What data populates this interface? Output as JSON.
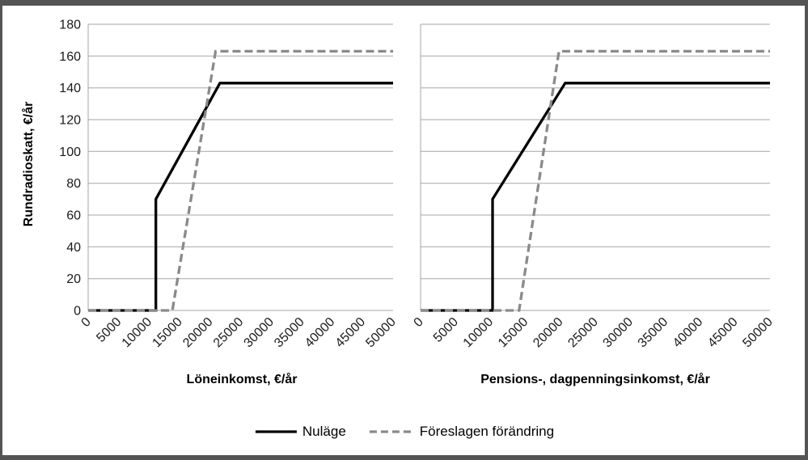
{
  "chart_data": [
    {
      "type": "line",
      "title": "",
      "xlabel": "Löneinkomst, €/år",
      "ylabel": "Rundradioskatt, €/år",
      "xlim": [
        0,
        50000
      ],
      "ylim": [
        0,
        180
      ],
      "x_ticks": [
        0,
        5000,
        10000,
        15000,
        20000,
        25000,
        30000,
        35000,
        40000,
        45000,
        50000
      ],
      "y_ticks": [
        0,
        20,
        40,
        60,
        80,
        100,
        120,
        140,
        160,
        180
      ],
      "grid": "horizontal-only",
      "legend_position": "bottom-center",
      "series": [
        {
          "name": "Nuläge",
          "style": "solid",
          "color": "#000000",
          "points": [
            [
              0,
              0
            ],
            [
              11100,
              0
            ],
            [
              11100,
              70
            ],
            [
              21600,
              143
            ],
            [
              50000,
              143
            ]
          ]
        },
        {
          "name": "Föreslagen förändring",
          "style": "dashed",
          "color": "#8a8a8a",
          "points": [
            [
              0,
              0
            ],
            [
              13800,
              0
            ],
            [
              20900,
              163
            ],
            [
              50000,
              163
            ]
          ]
        }
      ]
    },
    {
      "type": "line",
      "title": "",
      "xlabel": "Pensions-, dagpenningsinkomst, €/år",
      "ylabel": "Rundradioskatt, €/år",
      "xlim": [
        0,
        50000
      ],
      "ylim": [
        0,
        180
      ],
      "x_ticks": [
        0,
        5000,
        10000,
        15000,
        20000,
        25000,
        30000,
        35000,
        40000,
        45000,
        50000
      ],
      "y_ticks": [
        0,
        20,
        40,
        60,
        80,
        100,
        120,
        140,
        160,
        180
      ],
      "grid": "horizontal-only",
      "legend_position": "bottom-center",
      "series": [
        {
          "name": "Nuläge",
          "style": "solid",
          "color": "#000000",
          "points": [
            [
              0,
              0
            ],
            [
              10300,
              0
            ],
            [
              10300,
              70
            ],
            [
              20700,
              143
            ],
            [
              50000,
              143
            ]
          ]
        },
        {
          "name": "Föreslagen förändring",
          "style": "dashed",
          "color": "#8a8a8a",
          "points": [
            [
              0,
              0
            ],
            [
              14100,
              0
            ],
            [
              19800,
              163
            ],
            [
              50000,
              163
            ]
          ]
        }
      ]
    }
  ],
  "styles": {
    "gridline_color": "#a6a6a6",
    "tick_label_color": "#1a1a1a",
    "frame_color": "#545454"
  }
}
